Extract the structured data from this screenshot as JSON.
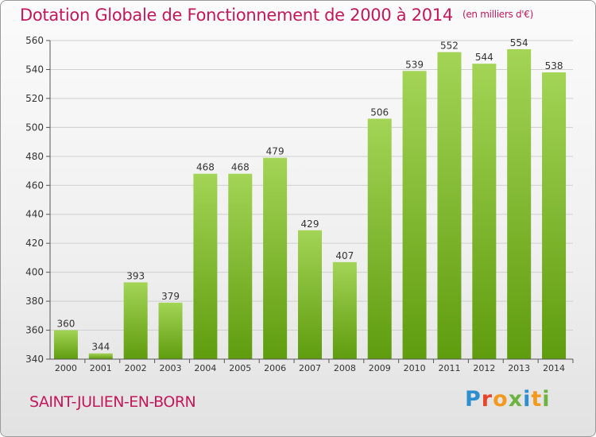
{
  "title": "Dotation Globale de Fonctionnement de 2000 à 2014",
  "subtitle": "(en milliers d'€)",
  "town": "SAINT-JULIEN-EN-BORN",
  "logo": {
    "letters": [
      "P",
      "r",
      "o",
      "x",
      "i",
      "t",
      "i"
    ],
    "colors": [
      "#2e8fd0",
      "#e8462a",
      "#f39a1e",
      "#6cb33f",
      "#2e8fd0",
      "#f39a1e",
      "#6cb33f"
    ]
  },
  "colors": {
    "bar_top": "#a3d456",
    "bar_bottom": "#5f9c0e",
    "title": "#c2185b"
  },
  "chart_data": {
    "type": "bar",
    "categories": [
      "2000",
      "2001",
      "2002",
      "2003",
      "2004",
      "2005",
      "2006",
      "2007",
      "2008",
      "2009",
      "2010",
      "2011",
      "2012",
      "2013",
      "2014"
    ],
    "values": [
      360,
      344,
      393,
      379,
      468,
      468,
      479,
      429,
      407,
      506,
      539,
      552,
      544,
      554,
      538
    ],
    "ylim": [
      340,
      560
    ],
    "yticks": [
      340,
      360,
      380,
      400,
      420,
      440,
      460,
      480,
      500,
      520,
      540,
      560
    ],
    "grid": true
  }
}
